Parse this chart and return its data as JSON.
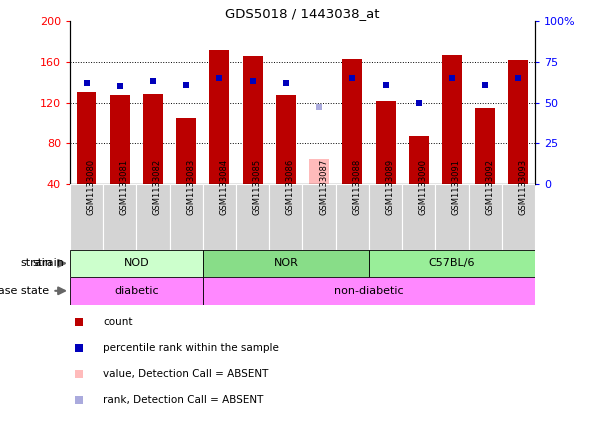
{
  "title": "GDS5018 / 1443038_at",
  "samples": [
    "GSM1133080",
    "GSM1133081",
    "GSM1133082",
    "GSM1133083",
    "GSM1133084",
    "GSM1133085",
    "GSM1133086",
    "GSM1133087",
    "GSM1133088",
    "GSM1133089",
    "GSM1133090",
    "GSM1133091",
    "GSM1133092",
    "GSM1133093"
  ],
  "count_values": [
    130,
    127,
    128,
    105,
    172,
    166,
    127,
    65,
    163,
    122,
    87,
    167,
    115,
    162
  ],
  "rank_values": [
    62,
    60,
    63,
    61,
    65,
    63,
    62,
    47,
    65,
    61,
    50,
    65,
    61,
    65
  ],
  "absent_index": 7,
  "strains": [
    {
      "label": "NOD",
      "start": 0,
      "end": 3
    },
    {
      "label": "NOR",
      "start": 4,
      "end": 8
    },
    {
      "label": "C57BL/6",
      "start": 9,
      "end": 13
    }
  ],
  "strain_colors": [
    "#ccffcc",
    "#88ee88",
    "#99ee99"
  ],
  "disease_states": [
    {
      "label": "diabetic",
      "start": 0,
      "end": 3
    },
    {
      "label": "non-diabetic",
      "start": 4,
      "end": 13
    }
  ],
  "disease_color": "#ff88ff",
  "ylim_left": [
    40,
    200
  ],
  "ylim_right": [
    0,
    100
  ],
  "yticks_left": [
    40,
    80,
    120,
    160,
    200
  ],
  "ytick_labels_left": [
    "40",
    "80",
    "120",
    "160",
    "200"
  ],
  "yticks_right": [
    0,
    25,
    50,
    75,
    100
  ],
  "ytick_labels_right": [
    "0",
    "25",
    "50",
    "75",
    "100%"
  ],
  "bar_color": "#bb0000",
  "rank_color": "#0000bb",
  "absent_bar_color": "#ffbbbb",
  "absent_rank_color": "#aaaadd",
  "legend_items": [
    {
      "color": "#bb0000",
      "label": "count"
    },
    {
      "color": "#0000bb",
      "label": "percentile rank within the sample"
    },
    {
      "color": "#ffbbbb",
      "label": "value, Detection Call = ABSENT"
    },
    {
      "color": "#aaaadd",
      "label": "rank, Detection Call = ABSENT"
    }
  ]
}
